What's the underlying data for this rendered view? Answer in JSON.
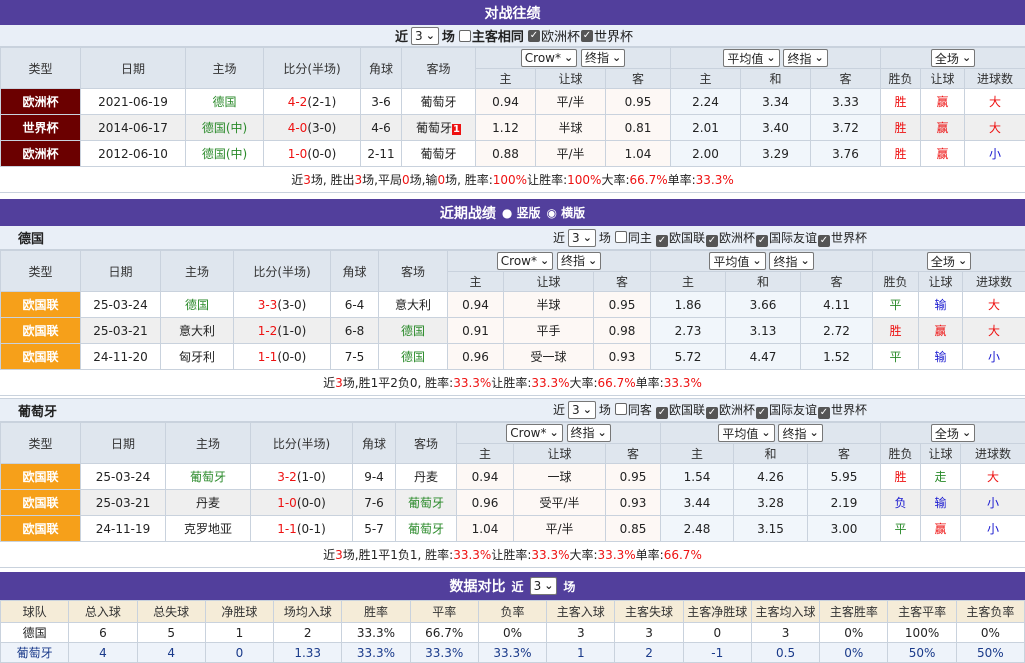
{
  "h2h": {
    "title": "对战往绩",
    "filter": {
      "near": "近",
      "count": "3",
      "unit": "场",
      "same": "主客相同",
      "same_checked": false,
      "cups": [
        {
          "label": "欧洲杯",
          "checked": true
        },
        {
          "label": "世界杯",
          "checked": true
        }
      ]
    },
    "summary": [
      {
        "t": "近 "
      },
      {
        "t": "3",
        "r": 1
      },
      {
        "t": " 场, 胜出 "
      },
      {
        "t": "3",
        "r": 1
      },
      {
        "t": " 场,平局 "
      },
      {
        "t": "0",
        "r": 1
      },
      {
        "t": " 场,输 "
      },
      {
        "t": "0",
        "r": 1
      },
      {
        "t": " 场, 胜率: "
      },
      {
        "t": "100%",
        "r": 1
      },
      {
        "t": " 让胜率: "
      },
      {
        "t": "100%",
        "r": 1
      },
      {
        "t": " 大率: "
      },
      {
        "t": "66.7%",
        "r": 1
      },
      {
        "t": " 单率: "
      },
      {
        "t": "33.3%",
        "r": 1
      }
    ],
    "rows": [
      {
        "type": "欧洲杯",
        "date": "2021-06-19",
        "home": "德国",
        "hg": "home",
        "score": "4-2",
        "half": "(2-1)",
        "corner": "3-6",
        "away": "葡萄牙",
        "ag": "",
        "flag": "",
        "o": [
          "0.94",
          "平/半",
          "0.95"
        ],
        "e": [
          "2.24",
          "3.34",
          "3.33"
        ],
        "r": [
          "胜",
          "赢",
          "大"
        ]
      },
      {
        "type": "世界杯",
        "date": "2014-06-17",
        "home": "德国(中)",
        "hg": "home",
        "score": "4-0",
        "half": "(3-0)",
        "corner": "4-6",
        "away": "葡萄牙",
        "ag": "",
        "flag": "1",
        "o": [
          "1.12",
          "半球",
          "0.81"
        ],
        "e": [
          "2.01",
          "3.40",
          "3.72"
        ],
        "r": [
          "胜",
          "赢",
          "大"
        ]
      },
      {
        "type": "欧洲杯",
        "date": "2012-06-10",
        "home": "德国(中)",
        "hg": "home",
        "score": "1-0",
        "half": "(0-0)",
        "corner": "2-11",
        "away": "葡萄牙",
        "ag": "",
        "flag": "",
        "o": [
          "0.88",
          "平/半",
          "1.04"
        ],
        "e": [
          "2.00",
          "3.29",
          "3.76"
        ],
        "r": [
          "胜",
          "赢",
          "小"
        ]
      }
    ]
  },
  "headers": {
    "type": "类型",
    "date": "日期",
    "home": "主场",
    "score": "比分(半场)",
    "corner": "角球",
    "away": "客场",
    "odds_company": "Crow*",
    "odds_kind": "终指",
    "euro_company": "平均值",
    "euro_kind": "终指",
    "period": "全场",
    "sub": [
      "主",
      "让球",
      "客",
      "主",
      "和",
      "客",
      "胜负",
      "让球",
      "进球数"
    ]
  },
  "recent": {
    "title": "近期战绩",
    "view_vertical": "竖版",
    "view_horizontal": "横版",
    "view_selected": "横版",
    "teams": [
      {
        "name": "德国",
        "near": "近",
        "count": "3",
        "unit": "场",
        "same": "同主",
        "same_checked": false,
        "cups": [
          {
            "label": "欧国联",
            "checked": true
          },
          {
            "label": "欧洲杯",
            "checked": true
          },
          {
            "label": "国际友谊",
            "checked": true
          },
          {
            "label": "世界杯",
            "checked": true
          }
        ],
        "summary": [
          {
            "t": "近"
          },
          {
            "t": "3",
            "r": 1
          },
          {
            "t": "场,胜1平2负0, 胜率:"
          },
          {
            "t": "33.3%",
            "r": 1
          },
          {
            "t": " 让胜率:"
          },
          {
            "t": "33.3%",
            "r": 1
          },
          {
            "t": " 大率:"
          },
          {
            "t": "66.7%",
            "r": 1
          },
          {
            "t": " 单率:"
          },
          {
            "t": "33.3%",
            "r": 1
          }
        ],
        "rows": [
          {
            "type": "欧国联",
            "date": "25-03-24",
            "home": "德国",
            "hg": "home",
            "score": "3-3",
            "half": "(3-0)",
            "corner": "6-4",
            "away": "意大利",
            "ag": "",
            "o": [
              "0.94",
              "半球",
              "0.95"
            ],
            "e": [
              "1.86",
              "3.66",
              "4.11"
            ],
            "r": [
              "平",
              "输",
              "大"
            ]
          },
          {
            "type": "欧国联",
            "date": "25-03-21",
            "home": "意大利",
            "hg": "",
            "score": "1-2",
            "half": "(1-0)",
            "corner": "6-8",
            "away": "德国",
            "ag": "home",
            "o": [
              "0.91",
              "平手",
              "0.98"
            ],
            "e": [
              "2.73",
              "3.13",
              "2.72"
            ],
            "r": [
              "胜",
              "赢",
              "大"
            ]
          },
          {
            "type": "欧国联",
            "date": "24-11-20",
            "home": "匈牙利",
            "hg": "",
            "score": "1-1",
            "half": "(0-0)",
            "corner": "7-5",
            "away": "德国",
            "ag": "home",
            "o": [
              "0.96",
              "受一球",
              "0.93"
            ],
            "e": [
              "5.72",
              "4.47",
              "1.52"
            ],
            "r": [
              "平",
              "输",
              "小"
            ]
          }
        ]
      },
      {
        "name": "葡萄牙",
        "near": "近",
        "count": "3",
        "unit": "场",
        "same": "同客",
        "same_checked": false,
        "cups": [
          {
            "label": "欧国联",
            "checked": true
          },
          {
            "label": "欧洲杯",
            "checked": true
          },
          {
            "label": "国际友谊",
            "checked": true
          },
          {
            "label": "世界杯",
            "checked": true
          }
        ],
        "summary": [
          {
            "t": "近"
          },
          {
            "t": "3",
            "r": 1
          },
          {
            "t": "场,胜1平1负1, 胜率:"
          },
          {
            "t": "33.3%",
            "r": 1
          },
          {
            "t": " 让胜率:"
          },
          {
            "t": "33.3%",
            "r": 1
          },
          {
            "t": " 大率:"
          },
          {
            "t": "33.3%",
            "r": 1
          },
          {
            "t": " 单率:"
          },
          {
            "t": "66.7%",
            "r": 1
          }
        ],
        "rows": [
          {
            "type": "欧国联",
            "date": "25-03-24",
            "home": "葡萄牙",
            "hg": "home",
            "score": "3-2",
            "half": "(1-0)",
            "corner": "9-4",
            "away": "丹麦",
            "ag": "",
            "o": [
              "0.94",
              "一球",
              "0.95"
            ],
            "e": [
              "1.54",
              "4.26",
              "5.95"
            ],
            "r": [
              "胜",
              "走",
              "大"
            ]
          },
          {
            "type": "欧国联",
            "date": "25-03-21",
            "home": "丹麦",
            "hg": "",
            "score": "1-0",
            "half": "(0-0)",
            "corner": "7-6",
            "away": "葡萄牙",
            "ag": "home",
            "o": [
              "0.96",
              "受平/半",
              "0.93"
            ],
            "e": [
              "3.44",
              "3.28",
              "2.19"
            ],
            "r": [
              "负",
              "输",
              "小"
            ]
          },
          {
            "type": "欧国联",
            "date": "24-11-19",
            "home": "克罗地亚",
            "hg": "",
            "score": "1-1",
            "half": "(0-1)",
            "corner": "5-7",
            "away": "葡萄牙",
            "ag": "home",
            "o": [
              "1.04",
              "平/半",
              "0.85"
            ],
            "e": [
              "2.48",
              "3.15",
              "3.00"
            ],
            "r": [
              "平",
              "赢",
              "小"
            ]
          }
        ]
      }
    ]
  },
  "compare": {
    "title": "数据对比",
    "near": "近",
    "count": "3",
    "unit": "场",
    "columns": [
      "球队",
      "总入球",
      "总失球",
      "净胜球",
      "场均入球",
      "胜率",
      "平率",
      "负率",
      "主客入球",
      "主客失球",
      "主客净胜球",
      "主客均入球",
      "主客胜率",
      "主客平率",
      "主客负率"
    ],
    "rows": [
      [
        "德国",
        "6",
        "5",
        "1",
        "2",
        "33.3%",
        "66.7%",
        "0%",
        "3",
        "3",
        "0",
        "3",
        "0%",
        "100%",
        "0%"
      ],
      [
        "葡萄牙",
        "4",
        "4",
        "0",
        "1.33",
        "33.3%",
        "33.3%",
        "33.3%",
        "1",
        "2",
        "-1",
        "0.5",
        "0%",
        "50%",
        "50%"
      ]
    ]
  },
  "colors": {
    "bar": "#523f9c",
    "cup": "#6b0000",
    "nations_league": "#f6a01a",
    "win": "#ee1111",
    "draw": "#2a8a2a",
    "loss": "#1a1ad0"
  }
}
